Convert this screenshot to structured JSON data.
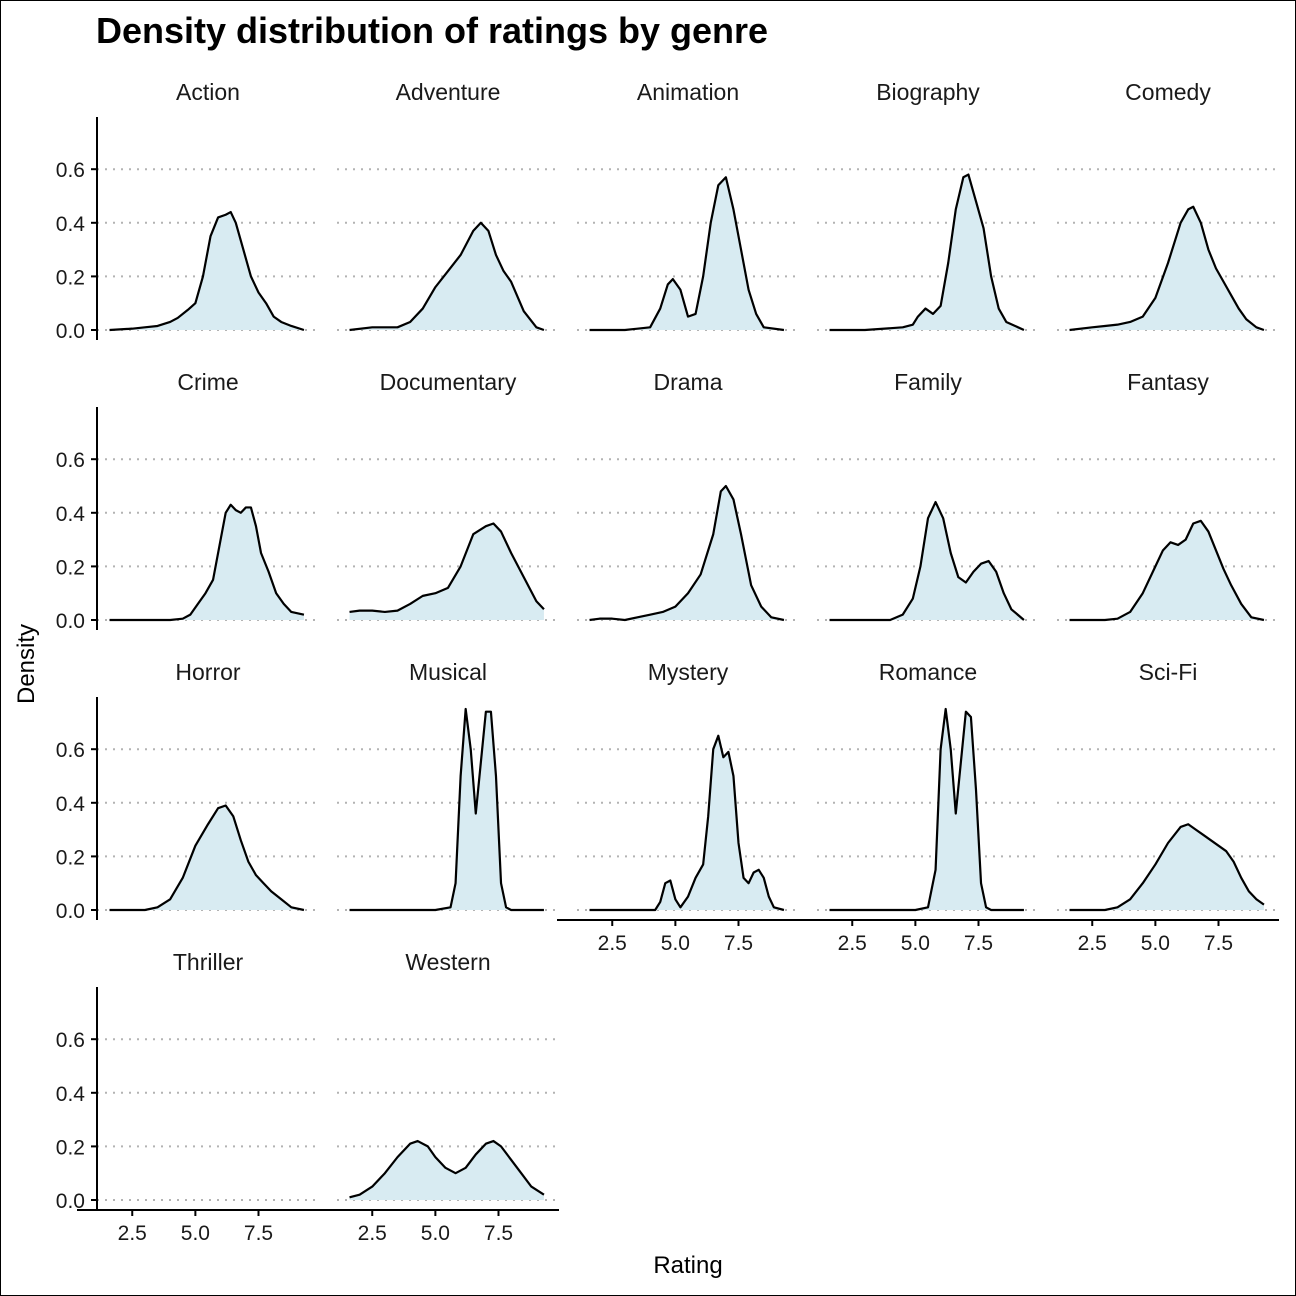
{
  "chart_data": {
    "type": "area",
    "title": "Density distribution of ratings by genre",
    "xlabel": "Rating",
    "ylabel": "Density",
    "xlim": [
      1.5,
      9.5
    ],
    "ylim": [
      0,
      0.78
    ],
    "x_ticks": [
      "2.5",
      "5.0",
      "7.5"
    ],
    "y_ticks": [
      "0.0",
      "0.2",
      "0.4",
      "0.6"
    ],
    "grid": "horizontal dotted",
    "fill_color": "#d8ebf2",
    "line_color": "#000000",
    "grid_color": "#b3b3b3",
    "panels": [
      {
        "name": "Action",
        "x": [
          1.6,
          2.5,
          3.0,
          3.5,
          4.0,
          4.3,
          4.7,
          5.0,
          5.3,
          5.6,
          5.9,
          6.2,
          6.4,
          6.6,
          6.9,
          7.2,
          7.5,
          7.8,
          8.1,
          8.4,
          8.8,
          9.3
        ],
        "y": [
          0.0,
          0.005,
          0.01,
          0.015,
          0.03,
          0.045,
          0.075,
          0.1,
          0.2,
          0.35,
          0.42,
          0.43,
          0.44,
          0.4,
          0.3,
          0.2,
          0.14,
          0.1,
          0.05,
          0.03,
          0.015,
          0.0
        ]
      },
      {
        "name": "Adventure",
        "x": [
          1.6,
          2.5,
          3.0,
          3.5,
          4.0,
          4.5,
          5.0,
          5.5,
          6.0,
          6.5,
          6.8,
          7.1,
          7.4,
          7.7,
          8.0,
          8.5,
          9.0,
          9.3
        ],
        "y": [
          0.0,
          0.01,
          0.01,
          0.01,
          0.03,
          0.08,
          0.16,
          0.22,
          0.28,
          0.37,
          0.4,
          0.37,
          0.28,
          0.22,
          0.18,
          0.07,
          0.01,
          0.0
        ]
      },
      {
        "name": "Animation",
        "x": [
          1.6,
          3.0,
          4.0,
          4.4,
          4.7,
          4.9,
          5.2,
          5.5,
          5.8,
          6.1,
          6.4,
          6.7,
          7.0,
          7.3,
          7.6,
          7.9,
          8.2,
          8.5,
          9.3
        ],
        "y": [
          0.0,
          0.0,
          0.01,
          0.08,
          0.17,
          0.19,
          0.15,
          0.05,
          0.06,
          0.2,
          0.4,
          0.54,
          0.57,
          0.45,
          0.3,
          0.15,
          0.06,
          0.01,
          0.0
        ]
      },
      {
        "name": "Biography",
        "x": [
          1.6,
          3.0,
          4.5,
          4.9,
          5.1,
          5.4,
          5.7,
          6.0,
          6.3,
          6.6,
          6.9,
          7.1,
          7.4,
          7.7,
          8.0,
          8.3,
          8.6,
          9.3
        ],
        "y": [
          0.0,
          0.0,
          0.01,
          0.02,
          0.05,
          0.08,
          0.06,
          0.09,
          0.25,
          0.45,
          0.57,
          0.58,
          0.48,
          0.38,
          0.2,
          0.08,
          0.03,
          0.0
        ]
      },
      {
        "name": "Comedy",
        "x": [
          1.6,
          2.5,
          3.0,
          3.5,
          4.0,
          4.5,
          5.0,
          5.5,
          6.0,
          6.3,
          6.5,
          6.8,
          7.1,
          7.4,
          7.7,
          8.0,
          8.3,
          8.6,
          9.0,
          9.3
        ],
        "y": [
          0.0,
          0.01,
          0.015,
          0.02,
          0.03,
          0.05,
          0.12,
          0.25,
          0.4,
          0.45,
          0.46,
          0.4,
          0.3,
          0.23,
          0.18,
          0.13,
          0.08,
          0.04,
          0.01,
          0.0
        ]
      },
      {
        "name": "Crime",
        "x": [
          1.6,
          3.0,
          4.0,
          4.5,
          4.8,
          5.1,
          5.4,
          5.7,
          6.0,
          6.2,
          6.4,
          6.6,
          6.8,
          7.0,
          7.2,
          7.4,
          7.6,
          7.9,
          8.2,
          8.5,
          8.8,
          9.3
        ],
        "y": [
          0.0,
          0.0,
          0.0,
          0.005,
          0.02,
          0.06,
          0.1,
          0.15,
          0.3,
          0.4,
          0.43,
          0.41,
          0.4,
          0.42,
          0.42,
          0.35,
          0.25,
          0.18,
          0.1,
          0.06,
          0.03,
          0.02
        ]
      },
      {
        "name": "Documentary",
        "x": [
          1.6,
          2.0,
          2.5,
          3.0,
          3.5,
          4.0,
          4.5,
          5.0,
          5.5,
          6.0,
          6.5,
          7.0,
          7.3,
          7.6,
          8.0,
          8.5,
          9.0,
          9.3
        ],
        "y": [
          0.03,
          0.035,
          0.035,
          0.03,
          0.035,
          0.06,
          0.09,
          0.1,
          0.12,
          0.2,
          0.32,
          0.35,
          0.36,
          0.33,
          0.25,
          0.16,
          0.07,
          0.04
        ]
      },
      {
        "name": "Drama",
        "x": [
          1.6,
          2.0,
          2.5,
          3.0,
          3.5,
          4.0,
          4.5,
          5.0,
          5.5,
          6.0,
          6.5,
          6.8,
          7.0,
          7.3,
          7.6,
          8.0,
          8.4,
          8.8,
          9.3
        ],
        "y": [
          0.0,
          0.005,
          0.005,
          0.0,
          0.01,
          0.02,
          0.03,
          0.05,
          0.1,
          0.17,
          0.32,
          0.48,
          0.5,
          0.45,
          0.32,
          0.13,
          0.05,
          0.01,
          0.0
        ]
      },
      {
        "name": "Family",
        "x": [
          1.6,
          3.0,
          4.0,
          4.5,
          4.9,
          5.2,
          5.5,
          5.8,
          6.1,
          6.4,
          6.7,
          7.0,
          7.3,
          7.6,
          7.9,
          8.2,
          8.5,
          8.8,
          9.3
        ],
        "y": [
          0.0,
          0.0,
          0.0,
          0.02,
          0.08,
          0.2,
          0.38,
          0.44,
          0.38,
          0.25,
          0.16,
          0.14,
          0.18,
          0.21,
          0.22,
          0.18,
          0.1,
          0.04,
          0.0
        ]
      },
      {
        "name": "Fantasy",
        "x": [
          1.6,
          3.0,
          3.5,
          4.0,
          4.5,
          5.0,
          5.3,
          5.6,
          5.9,
          6.2,
          6.5,
          6.8,
          7.1,
          7.4,
          7.7,
          8.0,
          8.4,
          8.8,
          9.3
        ],
        "y": [
          0.0,
          0.0,
          0.005,
          0.03,
          0.1,
          0.2,
          0.26,
          0.29,
          0.28,
          0.3,
          0.36,
          0.37,
          0.33,
          0.26,
          0.19,
          0.13,
          0.06,
          0.01,
          0.0
        ]
      },
      {
        "name": "Horror",
        "x": [
          1.6,
          3.0,
          3.5,
          4.0,
          4.5,
          5.0,
          5.5,
          5.9,
          6.2,
          6.5,
          6.8,
          7.1,
          7.4,
          7.7,
          8.0,
          8.4,
          8.8,
          9.3
        ],
        "y": [
          0.0,
          0.0,
          0.01,
          0.04,
          0.12,
          0.24,
          0.32,
          0.38,
          0.39,
          0.35,
          0.26,
          0.18,
          0.13,
          0.1,
          0.07,
          0.04,
          0.01,
          0.0
        ]
      },
      {
        "name": "Musical",
        "x": [
          1.6,
          3.0,
          5.0,
          5.6,
          5.8,
          6.0,
          6.2,
          6.4,
          6.6,
          6.8,
          7.0,
          7.2,
          7.4,
          7.6,
          7.8,
          8.0,
          9.3
        ],
        "y": [
          0.0,
          0.0,
          0.0,
          0.01,
          0.1,
          0.5,
          0.75,
          0.6,
          0.36,
          0.55,
          0.74,
          0.74,
          0.5,
          0.1,
          0.01,
          0.0,
          0.0
        ]
      },
      {
        "name": "Mystery",
        "x": [
          1.6,
          3.0,
          4.2,
          4.4,
          4.6,
          4.8,
          5.0,
          5.2,
          5.5,
          5.8,
          6.1,
          6.3,
          6.5,
          6.7,
          6.9,
          7.1,
          7.3,
          7.5,
          7.7,
          7.9,
          8.1,
          8.3,
          8.5,
          8.7,
          8.9,
          9.3
        ],
        "y": [
          0.0,
          0.0,
          0.0,
          0.03,
          0.1,
          0.11,
          0.04,
          0.01,
          0.05,
          0.12,
          0.17,
          0.35,
          0.6,
          0.65,
          0.57,
          0.59,
          0.5,
          0.25,
          0.12,
          0.1,
          0.14,
          0.15,
          0.12,
          0.05,
          0.01,
          0.0
        ]
      },
      {
        "name": "Romance",
        "x": [
          1.6,
          3.0,
          5.0,
          5.5,
          5.8,
          6.0,
          6.2,
          6.4,
          6.6,
          6.8,
          7.0,
          7.2,
          7.4,
          7.6,
          7.8,
          8.0,
          9.3
        ],
        "y": [
          0.0,
          0.0,
          0.0,
          0.01,
          0.15,
          0.6,
          0.75,
          0.6,
          0.36,
          0.55,
          0.74,
          0.72,
          0.45,
          0.1,
          0.01,
          0.0,
          0.0
        ]
      },
      {
        "name": "Sci-Fi",
        "x": [
          1.6,
          3.0,
          3.5,
          4.0,
          4.5,
          5.0,
          5.5,
          6.0,
          6.3,
          6.6,
          6.9,
          7.2,
          7.5,
          7.8,
          8.1,
          8.4,
          8.7,
          9.0,
          9.3
        ],
        "y": [
          0.0,
          0.0,
          0.01,
          0.04,
          0.1,
          0.17,
          0.25,
          0.31,
          0.32,
          0.3,
          0.28,
          0.26,
          0.24,
          0.22,
          0.18,
          0.12,
          0.07,
          0.04,
          0.02
        ]
      },
      {
        "name": "Thriller",
        "x": [],
        "y": []
      },
      {
        "name": "Western",
        "x": [
          1.6,
          2.0,
          2.5,
          3.0,
          3.5,
          4.0,
          4.3,
          4.7,
          5.0,
          5.4,
          5.8,
          6.2,
          6.6,
          7.0,
          7.3,
          7.6,
          8.0,
          8.4,
          8.8,
          9.3
        ],
        "y": [
          0.01,
          0.02,
          0.05,
          0.1,
          0.16,
          0.21,
          0.22,
          0.2,
          0.16,
          0.12,
          0.1,
          0.12,
          0.17,
          0.21,
          0.22,
          0.2,
          0.15,
          0.1,
          0.05,
          0.02
        ]
      }
    ]
  }
}
